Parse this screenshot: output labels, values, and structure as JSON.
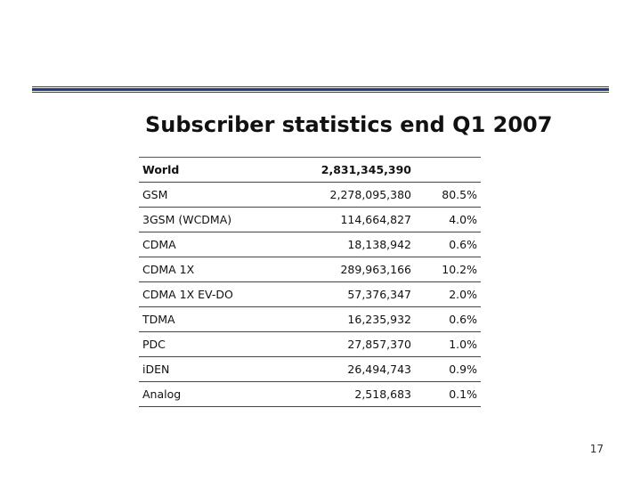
{
  "slide": {
    "title": "Subscriber statistics end Q1 2007",
    "page_number": "17"
  },
  "table": {
    "rows": [
      {
        "name": "World",
        "subscribers": "2,831,345,390",
        "share": ""
      },
      {
        "name": "GSM",
        "subscribers": "2,278,095,380",
        "share": "80.5%"
      },
      {
        "name": "3GSM (WCDMA)",
        "subscribers": "114,664,827",
        "share": "4.0%"
      },
      {
        "name": "CDMA",
        "subscribers": "18,138,942",
        "share": "0.6%"
      },
      {
        "name": "CDMA 1X",
        "subscribers": "289,963,166",
        "share": "10.2%"
      },
      {
        "name": "CDMA 1X EV-DO",
        "subscribers": "57,376,347",
        "share": "2.0%"
      },
      {
        "name": "TDMA",
        "subscribers": "16,235,932",
        "share": "0.6%"
      },
      {
        "name": "PDC",
        "subscribers": "27,857,370",
        "share": "1.0%"
      },
      {
        "name": "iDEN",
        "subscribers": "26,494,743",
        "share": "0.9%"
      },
      {
        "name": "Analog",
        "subscribers": "2,518,683",
        "share": "0.1%"
      }
    ]
  },
  "colors": {
    "rule": "#1f3a7a"
  }
}
